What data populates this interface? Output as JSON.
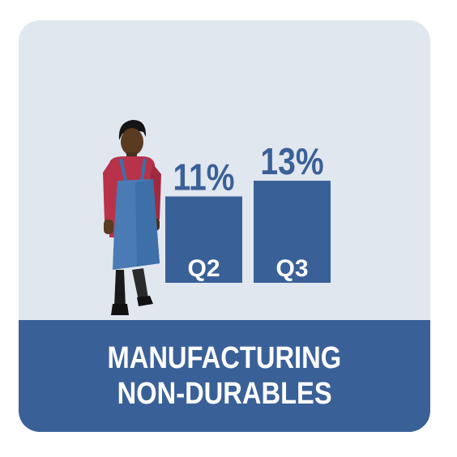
{
  "banner": {
    "line1": "MANUFACTURING",
    "line2": "NON-DURABLES"
  },
  "illustration": {
    "icon": "worker-apron-icon"
  },
  "colors": {
    "card_background": "#e1e7ef",
    "bar": "#3a6098",
    "value_text": "#3a6098",
    "banner_background": "#3a6098",
    "banner_text": "#ffffff"
  },
  "chart_data": {
    "type": "bar",
    "categories": [
      "Q2",
      "Q3"
    ],
    "values": [
      11,
      13
    ],
    "value_labels": [
      "11%",
      "13%"
    ],
    "unit": "%",
    "ylim": [
      0,
      13
    ],
    "grid": false,
    "legend": "none"
  }
}
